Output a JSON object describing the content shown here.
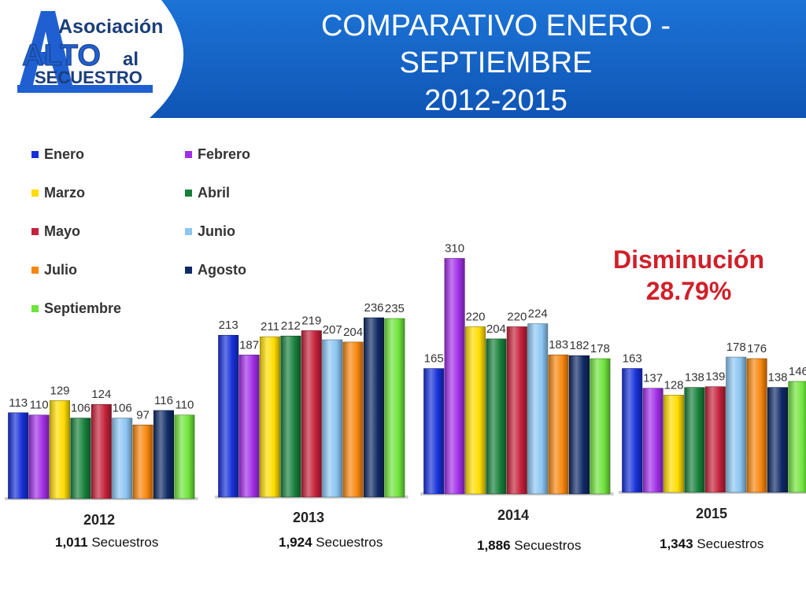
{
  "header": {
    "logo_text_1": "Asociación",
    "logo_text_2": "ALTO",
    "logo_text_3": "al",
    "logo_text_4": "SECUESTRO",
    "title_line_1": "COMPARATIVO ENERO -",
    "title_line_2": "SEPTIEMBRE",
    "title_line_3": "2012-2015",
    "brand_blue": "#1463c6",
    "logo_blue": "#1f5fd1"
  },
  "highlight": {
    "line_1": "Disminución",
    "line_2": "28.79%",
    "color": "#d0202a"
  },
  "totals": [
    {
      "value": "1,011",
      "unit": "Secuestros"
    },
    {
      "value": "1,924",
      "unit": "Secuestros"
    },
    {
      "value": "1,886",
      "unit": "Secuestros"
    },
    {
      "value": "1,343",
      "unit": "Secuestros"
    }
  ],
  "chart_data": {
    "type": "bar",
    "categories": [
      "2012",
      "2013",
      "2014",
      "2015"
    ],
    "series": [
      {
        "name": "Enero",
        "color": "#1530d8",
        "values": [
          113,
          213,
          165,
          163
        ]
      },
      {
        "name": "Febrero",
        "color": "#a12ee6",
        "values": [
          110,
          187,
          310,
          137
        ]
      },
      {
        "name": "Marzo",
        "color": "#ffdd00",
        "values": [
          129,
          211,
          220,
          128
        ]
      },
      {
        "name": "Abril",
        "color": "#16803a",
        "values": [
          106,
          212,
          204,
          138
        ]
      },
      {
        "name": "Mayo",
        "color": "#c4213a",
        "values": [
          124,
          219,
          220,
          139
        ]
      },
      {
        "name": "Junio",
        "color": "#8cc6f2",
        "values": [
          106,
          207,
          224,
          178
        ]
      },
      {
        "name": "Julio",
        "color": "#f7860e",
        "values": [
          97,
          204,
          183,
          176
        ]
      },
      {
        "name": "Agosto",
        "color": "#0f2a66",
        "values": [
          116,
          236,
          182,
          138
        ]
      },
      {
        "name": "Septiembre",
        "color": "#6fe43c",
        "values": [
          110,
          235,
          178,
          146
        ]
      }
    ],
    "legend_position": "top-left",
    "grid": false
  }
}
